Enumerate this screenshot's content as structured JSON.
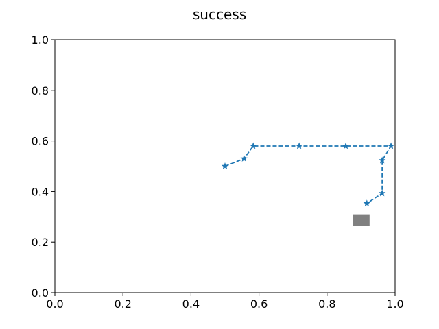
{
  "chart_data": {
    "type": "line",
    "title": "success",
    "xlabel": "",
    "ylabel": "",
    "xlim": [
      0.0,
      1.0
    ],
    "ylim": [
      0.0,
      1.0
    ],
    "x_ticks": [
      "0.0",
      "0.2",
      "0.4",
      "0.6",
      "0.8",
      "1.0"
    ],
    "y_ticks": [
      "0.0",
      "0.2",
      "0.4",
      "0.6",
      "0.8",
      "1.0"
    ],
    "grid": false,
    "legend": "none",
    "series": [
      {
        "line_style": "dashed",
        "marker": "star",
        "color": "#1f77b4",
        "x": [
          0.5,
          0.556,
          0.583,
          0.718,
          0.855,
          0.988,
          0.962,
          0.962,
          0.917
        ],
        "y": [
          0.5,
          0.53,
          0.58,
          0.58,
          0.58,
          0.58,
          0.523,
          0.393,
          0.353
        ]
      }
    ],
    "target": {
      "shape": "rectangle",
      "color": "#808080",
      "x_range": [
        0.875,
        0.925
      ],
      "y_range": [
        0.265,
        0.31
      ]
    }
  }
}
